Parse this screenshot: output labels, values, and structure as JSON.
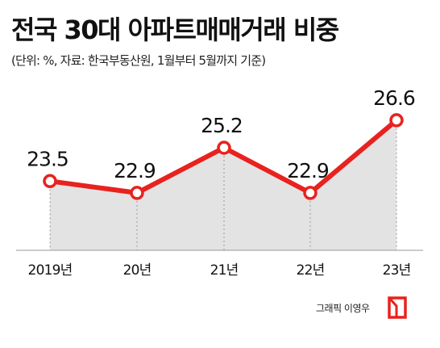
{
  "title": "전국 30대 아파트매매거래 비중",
  "subtitle": "(단위: %, 자료: 한국부동산원, 1월부터 5월까지 기준)",
  "credit": "그래픽 이영우",
  "colors": {
    "line": "#e8221e",
    "area": "#e3e3e3",
    "text": "#111111"
  },
  "chart_data": {
    "type": "area",
    "title": "전국 30대 아파트매매거래 비중",
    "xlabel": "",
    "ylabel": "",
    "categories": [
      "2019년",
      "20년",
      "21년",
      "22년",
      "23년"
    ],
    "values": [
      23.5,
      22.9,
      25.2,
      22.9,
      26.6
    ],
    "data_labels": [
      "23.5",
      "22.9",
      "25.2",
      "22.9",
      "26.6"
    ],
    "ylim": [
      18.5,
      27.5
    ],
    "grid": false,
    "legend": "none"
  }
}
